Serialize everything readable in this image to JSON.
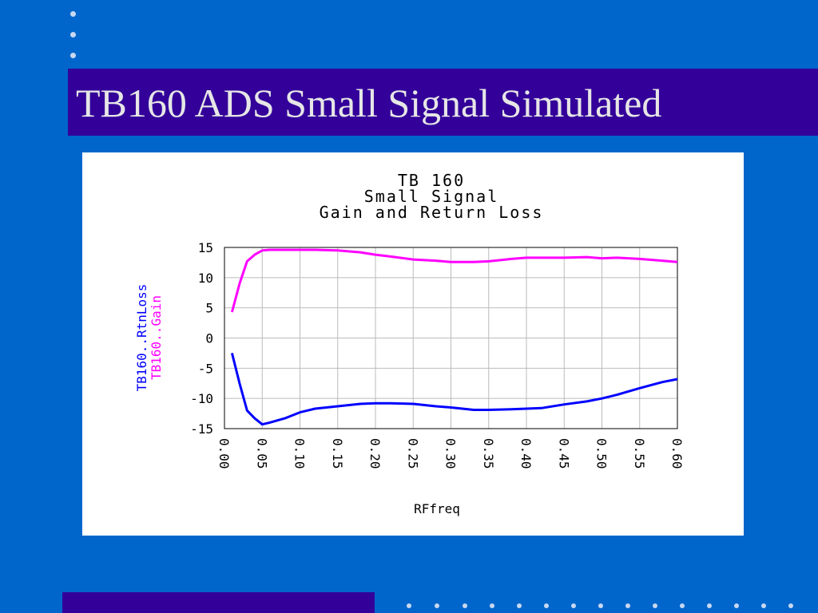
{
  "slide": {
    "title": "TB160 ADS Small Signal Simulated",
    "colors": {
      "background": "#0066cc",
      "title_bar": "#330099",
      "title_text": "#e6e6e6",
      "dots": "#c8d8f0"
    }
  },
  "chart_data": {
    "type": "line",
    "title_lines": [
      "TB 160",
      "Small Signal",
      "Gain and Return Loss"
    ],
    "xlabel": "RFfreq",
    "ylabel_series": [
      "TB160..RtnLoss",
      "TB160..Gain"
    ],
    "xlim": [
      0.0,
      0.6
    ],
    "ylim": [
      -15,
      15
    ],
    "xticks": [
      "0.00",
      "0.05",
      "0.10",
      "0.15",
      "0.20",
      "0.25",
      "0.30",
      "0.35",
      "0.40",
      "0.45",
      "0.50",
      "0.55",
      "0.60"
    ],
    "yticks": [
      "15",
      "10",
      "5",
      "0",
      "-5",
      "-10",
      "-15"
    ],
    "grid": true,
    "series": [
      {
        "name": "TB160..Gain",
        "color": "#ff00ff",
        "x": [
          0.01,
          0.02,
          0.03,
          0.04,
          0.05,
          0.06,
          0.08,
          0.1,
          0.12,
          0.15,
          0.18,
          0.2,
          0.22,
          0.25,
          0.28,
          0.3,
          0.33,
          0.35,
          0.38,
          0.4,
          0.42,
          0.45,
          0.48,
          0.5,
          0.52,
          0.55,
          0.58,
          0.6
        ],
        "y": [
          4.3,
          9.0,
          12.7,
          13.8,
          14.5,
          14.6,
          14.6,
          14.6,
          14.6,
          14.5,
          14.2,
          13.8,
          13.5,
          13.0,
          12.8,
          12.6,
          12.6,
          12.7,
          13.1,
          13.3,
          13.3,
          13.3,
          13.4,
          13.2,
          13.3,
          13.1,
          12.8,
          12.6
        ]
      },
      {
        "name": "TB160..RtnLoss",
        "color": "#0000ff",
        "x": [
          0.01,
          0.02,
          0.03,
          0.04,
          0.05,
          0.06,
          0.08,
          0.1,
          0.12,
          0.15,
          0.18,
          0.2,
          0.22,
          0.25,
          0.28,
          0.3,
          0.33,
          0.35,
          0.38,
          0.4,
          0.42,
          0.45,
          0.48,
          0.5,
          0.52,
          0.55,
          0.58,
          0.6
        ],
        "y": [
          -2.5,
          -7.5,
          -12.0,
          -13.3,
          -14.3,
          -14.0,
          -13.3,
          -12.3,
          -11.7,
          -11.3,
          -10.9,
          -10.8,
          -10.8,
          -10.9,
          -11.3,
          -11.5,
          -11.9,
          -11.9,
          -11.8,
          -11.7,
          -11.6,
          -11.0,
          -10.5,
          -10.0,
          -9.4,
          -8.3,
          -7.3,
          -6.8
        ]
      }
    ]
  }
}
